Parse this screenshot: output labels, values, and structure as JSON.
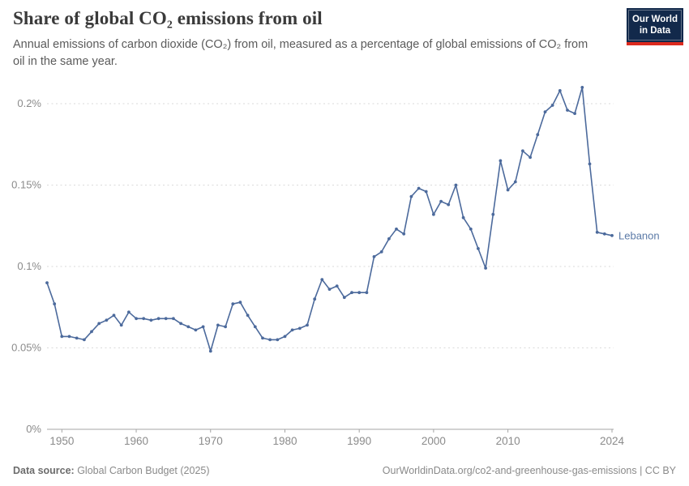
{
  "header": {
    "title": "Share of global CO₂ emissions from oil",
    "subtitle": "Annual emissions of carbon dioxide (CO₂) from oil, measured as a percentage of global emissions of CO₂ from oil in the same year.",
    "logo": {
      "line1": "Our World",
      "line2": "in Data"
    }
  },
  "colors": {
    "line": "#4c6a9c",
    "entity_label": "#5b7aa7",
    "grid": "#dadada",
    "axis": "#a5a5a5",
    "tick_text": "#8b8b8b",
    "logo_bg": "#12294b",
    "logo_accent": "#dc2a1e"
  },
  "chart_data": {
    "type": "line",
    "title": "Share of global CO₂ emissions from oil",
    "entity": "Lebanon",
    "unit": "%",
    "grid": "horizontal-dashed",
    "legend_position": "end-of-line-label",
    "xlim": [
      1948,
      2024
    ],
    "ylim": [
      0,
      0.21
    ],
    "x_ticks": [
      1950,
      1960,
      1970,
      1980,
      1990,
      2000,
      2010,
      2024
    ],
    "y_ticks": [
      {
        "value": 0,
        "label": "0%"
      },
      {
        "value": 0.05,
        "label": "0.05%"
      },
      {
        "value": 0.1,
        "label": "0.1%"
      },
      {
        "value": 0.15,
        "label": "0.15%"
      },
      {
        "value": 0.2,
        "label": "0.2%"
      }
    ],
    "x": [
      1948,
      1949,
      1950,
      1951,
      1952,
      1953,
      1954,
      1955,
      1956,
      1957,
      1958,
      1959,
      1960,
      1961,
      1962,
      1963,
      1964,
      1965,
      1966,
      1967,
      1968,
      1969,
      1970,
      1971,
      1972,
      1973,
      1974,
      1975,
      1976,
      1977,
      1978,
      1979,
      1980,
      1981,
      1982,
      1983,
      1984,
      1985,
      1986,
      1987,
      1988,
      1989,
      1990,
      1991,
      1992,
      1993,
      1994,
      1995,
      1996,
      1997,
      1998,
      1999,
      2000,
      2001,
      2002,
      2003,
      2004,
      2005,
      2006,
      2007,
      2008,
      2009,
      2010,
      2011,
      2012,
      2013,
      2014,
      2015,
      2016,
      2017,
      2018,
      2019,
      2020,
      2021,
      2022,
      2023,
      2024
    ],
    "series": [
      {
        "name": "Lebanon",
        "values": [
          0.09,
          0.077,
          0.057,
          0.057,
          0.056,
          0.055,
          0.06,
          0.065,
          0.067,
          0.07,
          0.064,
          0.072,
          0.068,
          0.068,
          0.067,
          0.068,
          0.068,
          0.068,
          0.065,
          0.063,
          0.061,
          0.063,
          0.048,
          0.064,
          0.063,
          0.077,
          0.078,
          0.07,
          0.063,
          0.056,
          0.055,
          0.055,
          0.057,
          0.061,
          0.062,
          0.064,
          0.08,
          0.092,
          0.086,
          0.088,
          0.081,
          0.084,
          0.084,
          0.084,
          0.106,
          0.109,
          0.117,
          0.123,
          0.12,
          0.143,
          0.148,
          0.146,
          0.132,
          0.14,
          0.138,
          0.15,
          0.13,
          0.123,
          0.111,
          0.099,
          0.132,
          0.165,
          0.147,
          0.152,
          0.171,
          0.167,
          0.181,
          0.195,
          0.199,
          0.208,
          0.196,
          0.194,
          0.21,
          0.163,
          0.121,
          0.12,
          0.119
        ]
      }
    ]
  },
  "footer": {
    "source_label": "Data source:",
    "source_value": " Global Carbon Budget (2025)",
    "credit": "OurWorldinData.org/co2-and-greenhouse-gas-emissions | CC BY"
  }
}
